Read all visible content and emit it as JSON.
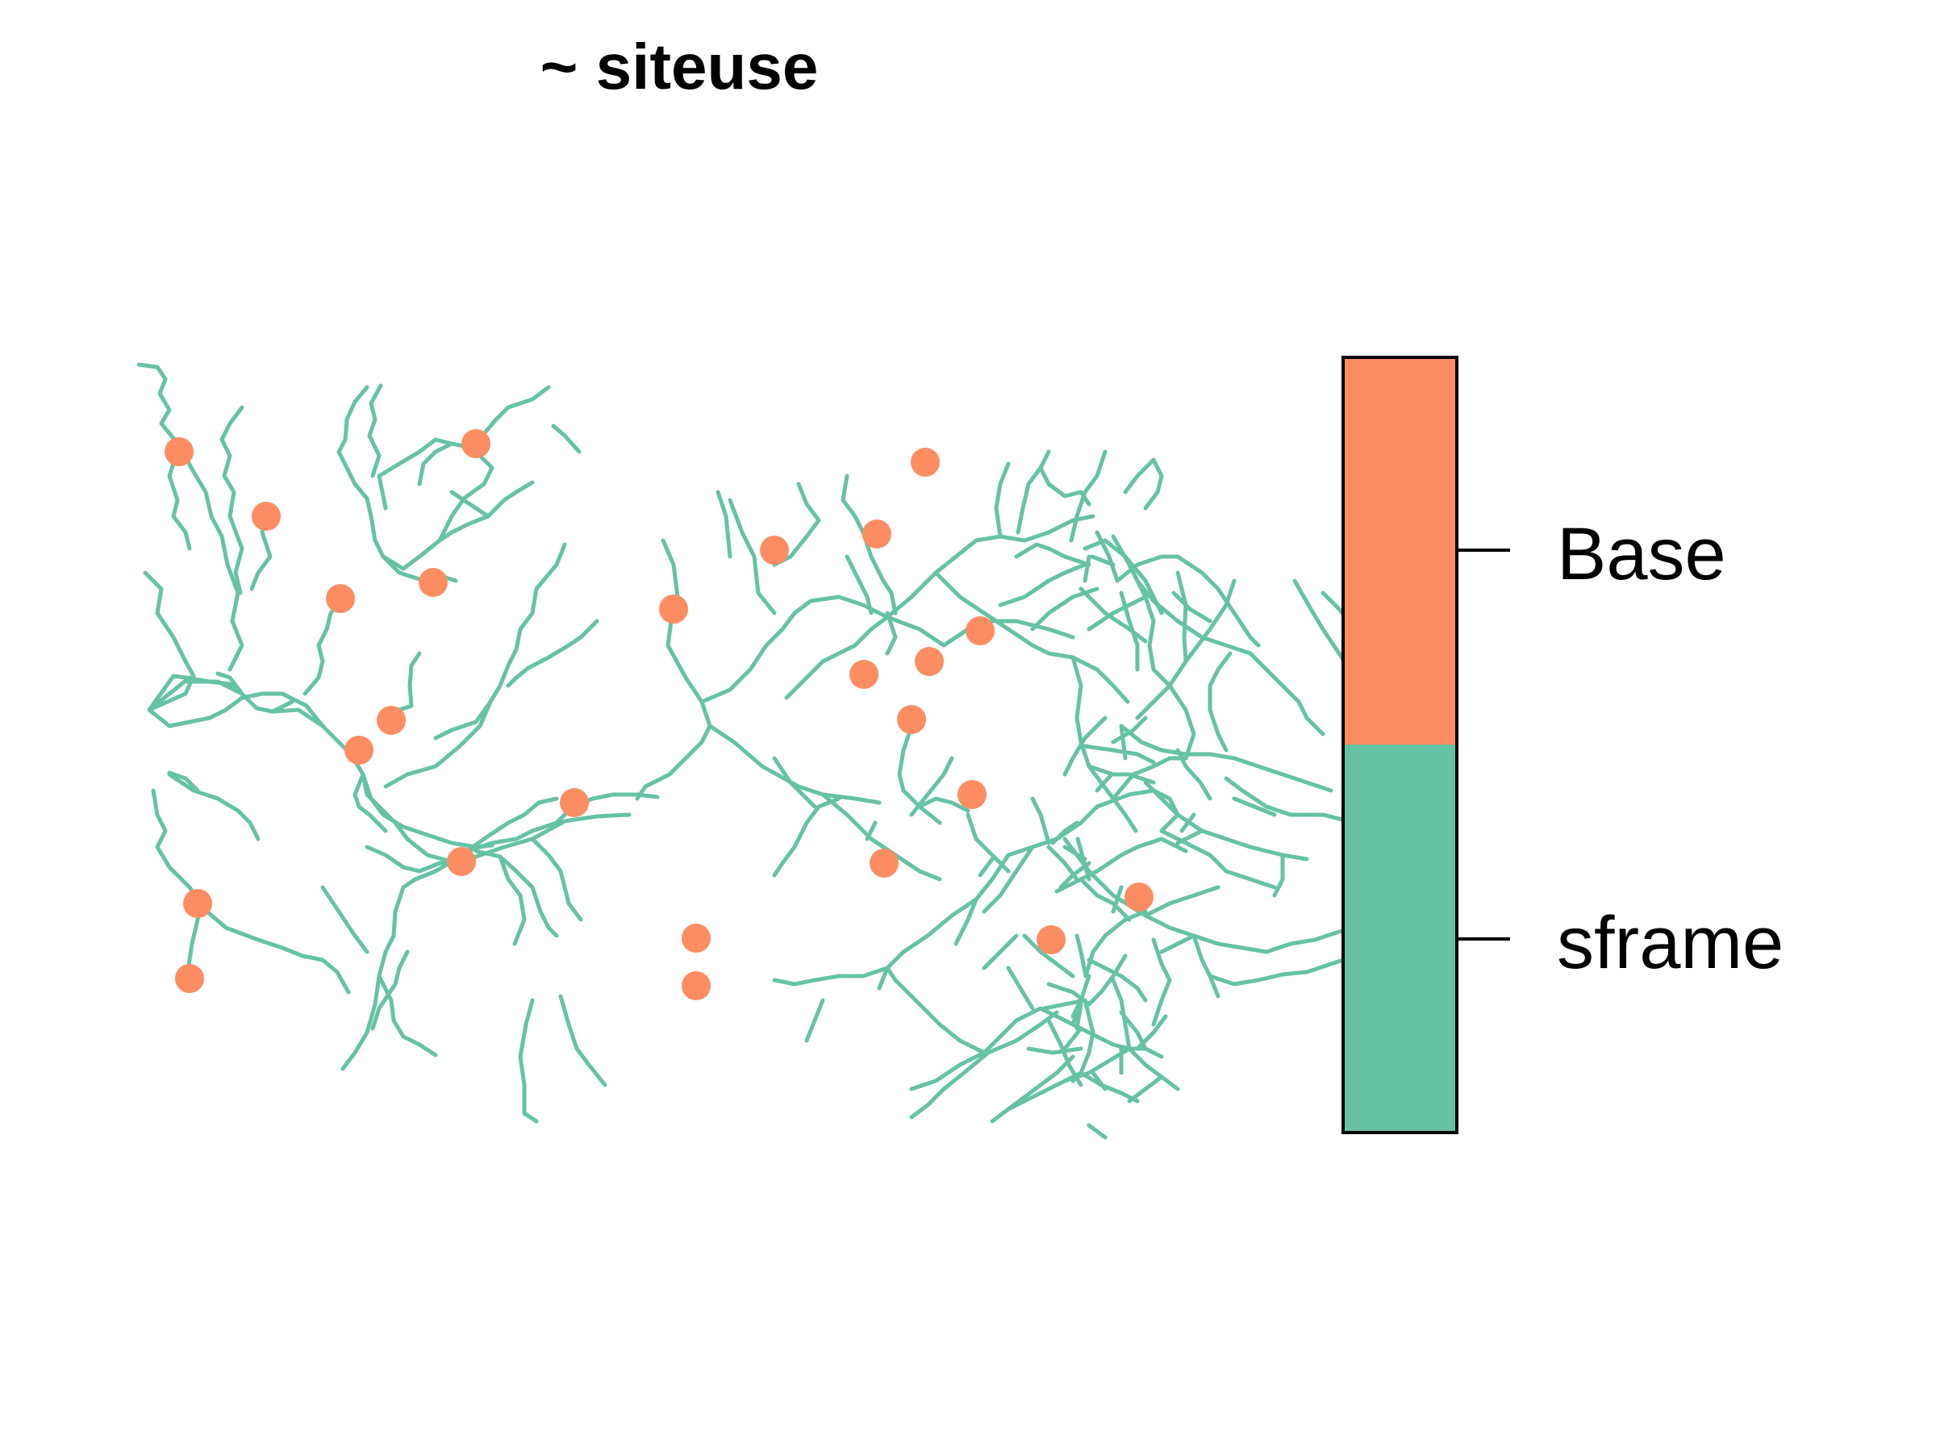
{
  "title": "~ siteuse",
  "colors": {
    "Base": "#fc8d62",
    "sframe": "#66c2a5",
    "frame": "#000000"
  },
  "legend": {
    "entries": [
      {
        "label": "Base",
        "color": "#fc8d62"
      },
      {
        "label": "sframe",
        "color": "#66c2a5"
      }
    ]
  }
}
